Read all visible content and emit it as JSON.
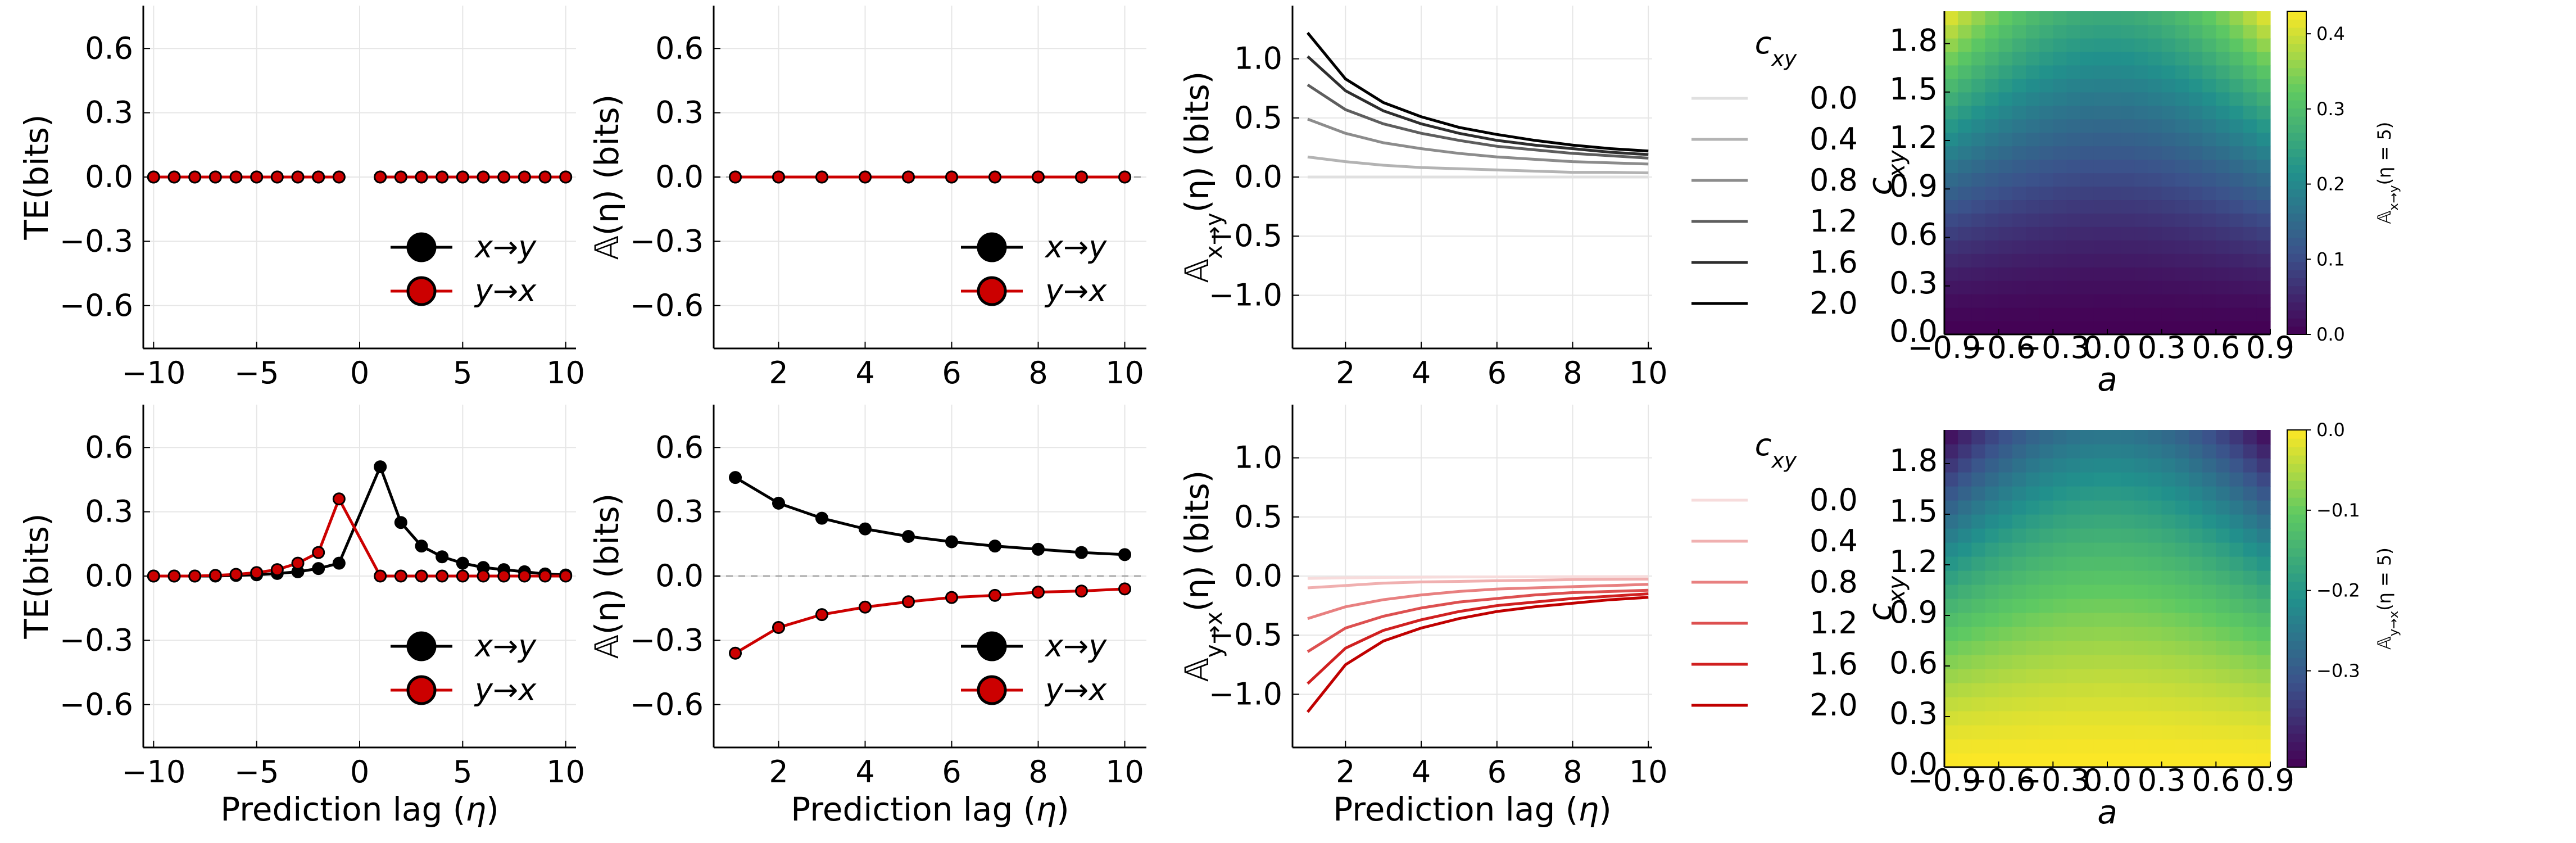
{
  "chart_data": [
    {
      "id": "te-uncoupled",
      "type": "line",
      "ylabel": "TE(bits)",
      "xlabel": "",
      "xlim": [
        -10.5,
        10.5
      ],
      "ylim": [
        -0.8,
        0.8
      ],
      "xticks": [
        -10,
        -5,
        0,
        5,
        10
      ],
      "xtick_labels": [
        "−10",
        "−5",
        "0",
        "5",
        "10"
      ],
      "yticks": [
        -0.6,
        -0.3,
        0.0,
        0.3,
        0.6
      ],
      "ytick_labels": [
        "−0.6",
        "−0.3",
        "0.0",
        "0.3",
        "0.6"
      ],
      "grid": true,
      "legend_position": "bottom-right",
      "x": [
        -10,
        -9,
        -8,
        -7,
        -6,
        -5,
        -4,
        -3,
        -2,
        -1,
        1,
        2,
        3,
        4,
        5,
        6,
        7,
        8,
        9,
        10
      ],
      "series": [
        {
          "name": "x→y",
          "color": "#000000",
          "values": [
            0,
            0,
            0,
            0,
            0,
            0,
            0,
            0,
            0,
            0,
            0,
            0,
            0,
            0,
            0,
            0,
            0,
            0,
            0,
            0
          ]
        },
        {
          "name": "y→x",
          "color": "#cc0000",
          "values": [
            0,
            0,
            0,
            0,
            0,
            0,
            0,
            0,
            0,
            0,
            0,
            0,
            0,
            0,
            0,
            0,
            0,
            0,
            0,
            0
          ]
        }
      ]
    },
    {
      "id": "asym-uncoupled",
      "type": "line",
      "ylabel": "𝔸(η) (bits)",
      "xlabel": "",
      "xlim": [
        0.5,
        10.5
      ],
      "ylim": [
        -0.8,
        0.8
      ],
      "xticks": [
        2,
        4,
        6,
        8,
        10
      ],
      "xtick_labels": [
        "2",
        "4",
        "6",
        "8",
        "10"
      ],
      "yticks": [
        -0.6,
        -0.3,
        0.0,
        0.3,
        0.6
      ],
      "ytick_labels": [
        "−0.6",
        "−0.3",
        "0.0",
        "0.3",
        "0.6"
      ],
      "grid": true,
      "legend_position": "bottom-right",
      "zero_line": "dashed",
      "x": [
        1,
        2,
        3,
        4,
        5,
        6,
        7,
        8,
        9,
        10
      ],
      "series": [
        {
          "name": "x→y",
          "color": "#000000",
          "values": [
            0,
            0,
            0,
            0,
            0,
            0,
            0,
            0,
            0,
            0
          ]
        },
        {
          "name": "y→x",
          "color": "#cc0000",
          "values": [
            0,
            0,
            0,
            0,
            0,
            0,
            0,
            0,
            0,
            0
          ]
        }
      ]
    },
    {
      "id": "asym-xy-cxy",
      "type": "line",
      "ylabel": "𝔸x→y(η) (bits)",
      "xlabel": "",
      "xlim": [
        0.6,
        10.1
      ],
      "ylim": [
        -1.45,
        1.45
      ],
      "xticks": [
        2,
        4,
        6,
        8,
        10
      ],
      "xtick_labels": [
        "2",
        "4",
        "6",
        "8",
        "10"
      ],
      "yticks": [
        -1.0,
        -0.5,
        0.0,
        0.5,
        1.0
      ],
      "ytick_labels": [
        "−1.0",
        "−0.5",
        "0.0",
        "0.5",
        "1.0"
      ],
      "grid": true,
      "legend_title": "cxy",
      "legend_position": "outside-right",
      "x": [
        1,
        2,
        3,
        4,
        5,
        6,
        7,
        8,
        9,
        10
      ],
      "series": [
        {
          "name": "0.0",
          "color": "#e0e0e0",
          "values": [
            0,
            0,
            0,
            0,
            0,
            0,
            0,
            0,
            0,
            0
          ]
        },
        {
          "name": "0.4",
          "color": "#b3b3b3",
          "values": [
            0.17,
            0.13,
            0.1,
            0.08,
            0.07,
            0.06,
            0.05,
            0.04,
            0.04,
            0.035
          ]
        },
        {
          "name": "0.8",
          "color": "#8c8c8c",
          "values": [
            0.49,
            0.37,
            0.29,
            0.24,
            0.2,
            0.17,
            0.15,
            0.13,
            0.12,
            0.11
          ]
        },
        {
          "name": "1.2",
          "color": "#5e5e5e",
          "values": [
            0.78,
            0.57,
            0.45,
            0.37,
            0.31,
            0.26,
            0.23,
            0.2,
            0.18,
            0.16
          ]
        },
        {
          "name": "1.6",
          "color": "#2e2e2e",
          "values": [
            1.02,
            0.73,
            0.56,
            0.45,
            0.37,
            0.31,
            0.27,
            0.24,
            0.21,
            0.19
          ]
        },
        {
          "name": "2.0",
          "color": "#000000",
          "values": [
            1.22,
            0.83,
            0.63,
            0.51,
            0.42,
            0.36,
            0.31,
            0.27,
            0.24,
            0.22
          ]
        }
      ]
    },
    {
      "id": "heatmap-xy",
      "type": "heatmap",
      "xlabel": "a",
      "ylabel": "cxy",
      "xticks": [
        -0.9,
        -0.6,
        -0.3,
        0.0,
        0.3,
        0.6,
        0.9
      ],
      "xtick_labels": [
        "−0.9",
        "−0.6",
        "−0.3",
        "0.0",
        "0.3",
        "0.6",
        "0.9"
      ],
      "yticks": [
        0.0,
        0.3,
        0.6,
        0.9,
        1.2,
        1.5,
        1.8
      ],
      "ytick_labels": [
        "0.0",
        "0.3",
        "0.6",
        "0.9",
        "1.2",
        "1.5",
        "1.8"
      ],
      "xlim": [
        -0.9,
        0.9
      ],
      "ylim": [
        0.0,
        2.0
      ],
      "colorbar_label": "𝔸x→y(η = 5)",
      "colorbar_range": [
        0.0,
        0.43
      ],
      "colorbar_ticks": [
        0.0,
        0.1,
        0.2,
        0.3,
        0.4
      ],
      "colorbar_tick_labels": [
        "0.0",
        "0.1",
        "0.2",
        "0.3",
        "0.4"
      ],
      "colormap": "viridis"
    },
    {
      "id": "te-coupled",
      "type": "line",
      "ylabel": "TE(bits)",
      "xlabel": "Prediction lag (η)",
      "xlim": [
        -10.5,
        10.5
      ],
      "ylim": [
        -0.8,
        0.8
      ],
      "xticks": [
        -10,
        -5,
        0,
        5,
        10
      ],
      "xtick_labels": [
        "−10",
        "−5",
        "0",
        "5",
        "10"
      ],
      "yticks": [
        -0.6,
        -0.3,
        0.0,
        0.3,
        0.6
      ],
      "ytick_labels": [
        "−0.6",
        "−0.3",
        "0.0",
        "0.3",
        "0.6"
      ],
      "grid": true,
      "legend_position": "bottom-right",
      "x": [
        -10,
        -9,
        -8,
        -7,
        -6,
        -5,
        -4,
        -3,
        -2,
        -1,
        1,
        2,
        3,
        4,
        5,
        6,
        7,
        8,
        9,
        10
      ],
      "series": [
        {
          "name": "x→y",
          "color": "#000000",
          "values": [
            0,
            0,
            0,
            0,
            0.003,
            0.006,
            0.012,
            0.02,
            0.035,
            0.06,
            0.51,
            0.25,
            0.14,
            0.09,
            0.06,
            0.04,
            0.03,
            0.02,
            0.01,
            0.005
          ]
        },
        {
          "name": "y→x",
          "color": "#cc0000",
          "values": [
            0,
            0,
            0,
            0.003,
            0.008,
            0.016,
            0.03,
            0.06,
            0.11,
            0.36,
            0,
            0,
            0,
            0,
            0,
            0,
            0,
            0,
            0,
            0
          ]
        }
      ]
    },
    {
      "id": "asym-coupled",
      "type": "line",
      "ylabel": "𝔸(η) (bits)",
      "xlabel": "Prediction lag (η)",
      "xlim": [
        0.5,
        10.5
      ],
      "ylim": [
        -0.8,
        0.8
      ],
      "xticks": [
        2,
        4,
        6,
        8,
        10
      ],
      "xtick_labels": [
        "2",
        "4",
        "6",
        "8",
        "10"
      ],
      "yticks": [
        -0.6,
        -0.3,
        0.0,
        0.3,
        0.6
      ],
      "ytick_labels": [
        "−0.6",
        "−0.3",
        "0.0",
        "0.3",
        "0.6"
      ],
      "grid": true,
      "legend_position": "bottom-right",
      "zero_line": "dashed",
      "x": [
        1,
        2,
        3,
        4,
        5,
        6,
        7,
        8,
        9,
        10
      ],
      "series": [
        {
          "name": "x→y",
          "color": "#000000",
          "values": [
            0.46,
            0.34,
            0.27,
            0.22,
            0.185,
            0.16,
            0.14,
            0.125,
            0.11,
            0.1
          ]
        },
        {
          "name": "y→x",
          "color": "#cc0000",
          "values": [
            -0.36,
            -0.24,
            -0.18,
            -0.145,
            -0.12,
            -0.1,
            -0.09,
            -0.075,
            -0.07,
            -0.06
          ]
        }
      ]
    },
    {
      "id": "asym-yx-cxy",
      "type": "line",
      "ylabel": "𝔸y→x(η) (bits)",
      "xlabel": "Prediction lag (η)",
      "xlim": [
        0.6,
        10.1
      ],
      "ylim": [
        -1.45,
        1.45
      ],
      "xticks": [
        2,
        4,
        6,
        8,
        10
      ],
      "xtick_labels": [
        "2",
        "4",
        "6",
        "8",
        "10"
      ],
      "yticks": [
        -1.0,
        -0.5,
        0.0,
        0.5,
        1.0
      ],
      "ytick_labels": [
        "−1.0",
        "−0.5",
        "0.0",
        "0.5",
        "1.0"
      ],
      "grid": true,
      "legend_title": "cxy",
      "legend_position": "outside-right",
      "x": [
        1,
        2,
        3,
        4,
        5,
        6,
        7,
        8,
        9,
        10
      ],
      "series": [
        {
          "name": "0.0",
          "color": "#f7dcdc",
          "values": [
            -0.02,
            -0.015,
            -0.012,
            -0.01,
            -0.008,
            -0.007,
            -0.006,
            -0.005,
            -0.005,
            -0.004
          ]
        },
        {
          "name": "0.4",
          "color": "#f0b0b0",
          "values": [
            -0.1,
            -0.08,
            -0.06,
            -0.05,
            -0.045,
            -0.04,
            -0.035,
            -0.03,
            -0.028,
            -0.026
          ]
        },
        {
          "name": "0.8",
          "color": "#e88080",
          "values": [
            -0.36,
            -0.26,
            -0.2,
            -0.16,
            -0.13,
            -0.11,
            -0.1,
            -0.09,
            -0.08,
            -0.07
          ]
        },
        {
          "name": "1.2",
          "color": "#dd5050",
          "values": [
            -0.64,
            -0.44,
            -0.34,
            -0.27,
            -0.22,
            -0.19,
            -0.16,
            -0.14,
            -0.13,
            -0.12
          ]
        },
        {
          "name": "1.6",
          "color": "#d02020",
          "values": [
            -0.91,
            -0.61,
            -0.46,
            -0.37,
            -0.3,
            -0.25,
            -0.22,
            -0.19,
            -0.17,
            -0.15
          ]
        },
        {
          "name": "2.0",
          "color": "#c00000",
          "values": [
            -1.15,
            -0.75,
            -0.55,
            -0.44,
            -0.36,
            -0.3,
            -0.26,
            -0.23,
            -0.2,
            -0.18
          ]
        }
      ]
    },
    {
      "id": "heatmap-yx",
      "type": "heatmap",
      "xlabel": "a",
      "ylabel": "cxy",
      "xticks": [
        -0.9,
        -0.6,
        -0.3,
        0.0,
        0.3,
        0.6,
        0.9
      ],
      "xtick_labels": [
        "−0.9",
        "−0.6",
        "−0.3",
        "0.0",
        "0.3",
        "0.6",
        "0.9"
      ],
      "yticks": [
        0.0,
        0.3,
        0.6,
        0.9,
        1.2,
        1.5,
        1.8
      ],
      "ytick_labels": [
        "0.0",
        "0.3",
        "0.6",
        "0.9",
        "1.2",
        "1.5",
        "1.8"
      ],
      "xlim": [
        -0.9,
        0.9
      ],
      "ylim": [
        0.0,
        2.0
      ],
      "colorbar_label": "𝔸y→x(η = 5)",
      "colorbar_range": [
        -0.42,
        0.0
      ],
      "colorbar_ticks": [
        -0.3,
        -0.2,
        -0.1,
        0.0
      ],
      "colorbar_tick_labels": [
        "−0.3",
        "−0.2",
        "−0.1",
        "0.0"
      ],
      "colormap": "viridis"
    }
  ]
}
